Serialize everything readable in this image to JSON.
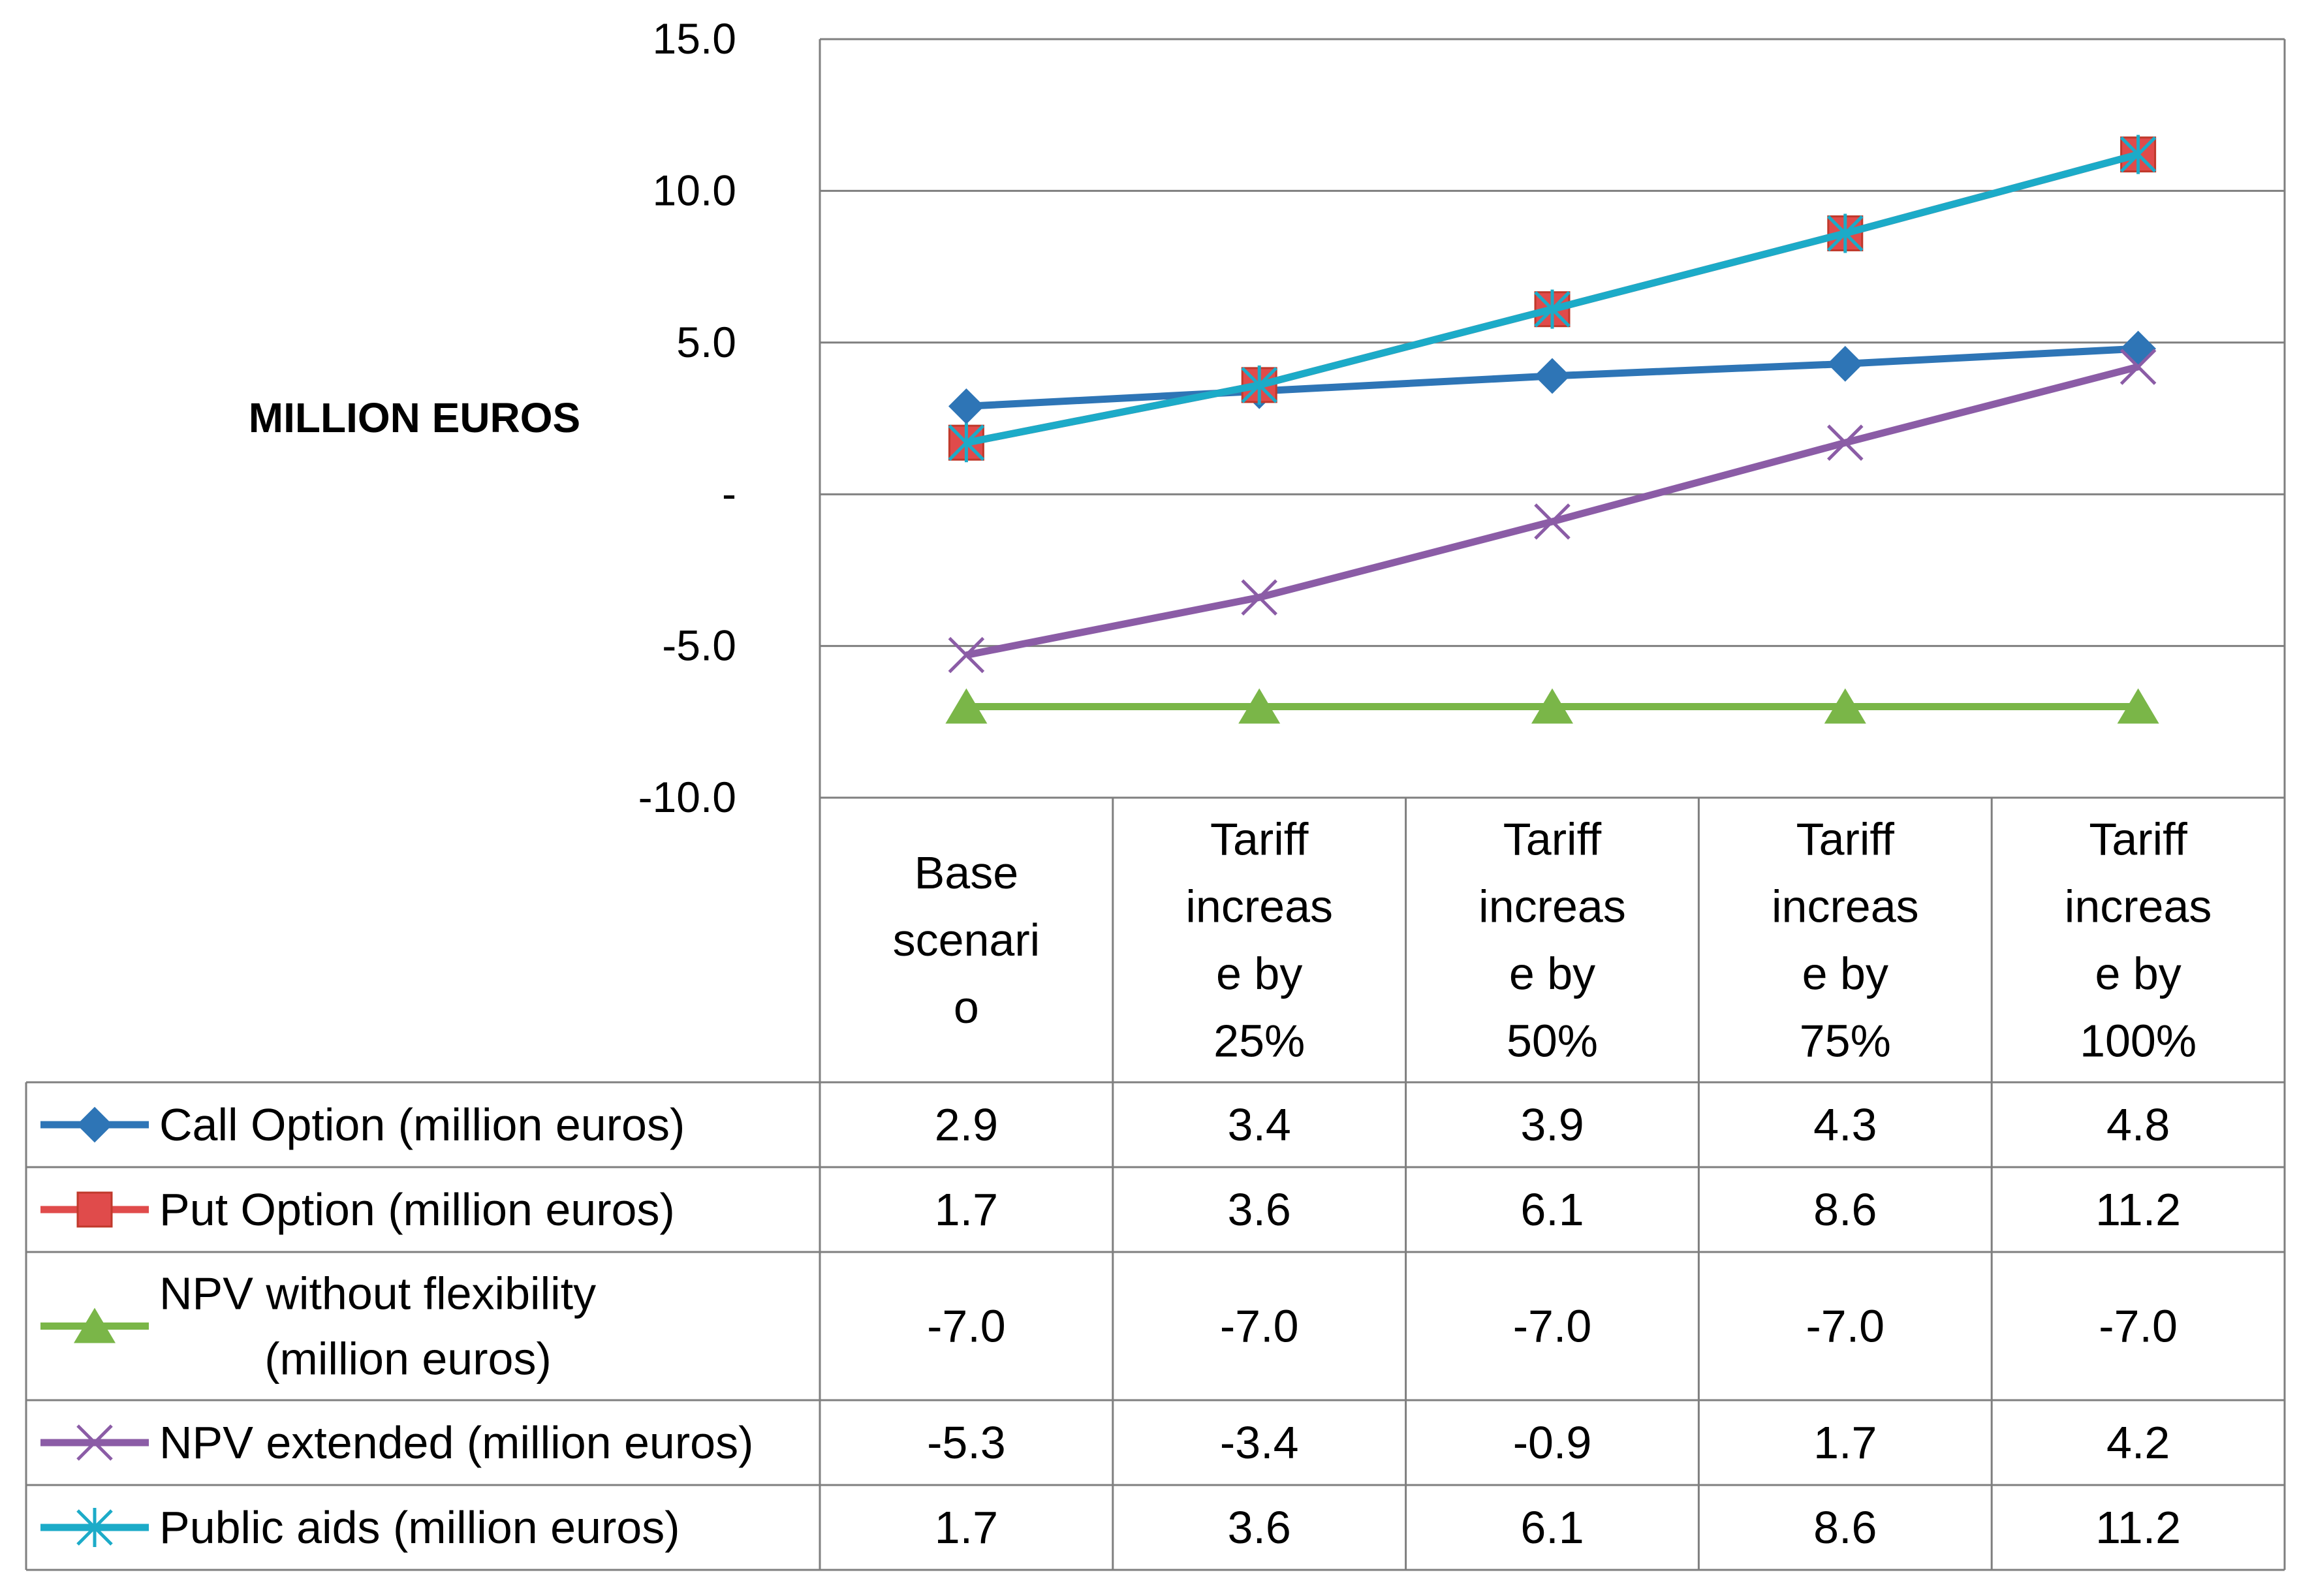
{
  "chart_data": {
    "type": "line",
    "title": "",
    "xlabel": "",
    "ylabel": "MILLION EUROS",
    "ylim": [
      -10,
      15
    ],
    "ytick_values": [
      15,
      10,
      5,
      0,
      -5,
      -10
    ],
    "ytick_labels": [
      "15.0",
      "10.0",
      "5.0",
      "-",
      "-5.0",
      "-10.0"
    ],
    "grid": true,
    "legend_position": "data table below plot",
    "categories": [
      [
        "Base",
        "scenari",
        "o"
      ],
      [
        "Tariff",
        "increas",
        "e by",
        "25%"
      ],
      [
        "Tariff",
        "increas",
        "e by",
        "50%"
      ],
      [
        "Tariff",
        "increas",
        "e by",
        "75%"
      ],
      [
        "Tariff",
        "increas",
        "e by",
        "100%"
      ]
    ],
    "series": [
      {
        "name": "Call Option (million euros)",
        "name_lines": [
          "Call Option (million euros)"
        ],
        "color": "#2E75B6",
        "marker": "diamond",
        "values": [
          2.9,
          3.4,
          3.9,
          4.3,
          4.8
        ],
        "labels": [
          "2.9",
          "3.4",
          "3.9",
          "4.3",
          "4.8"
        ]
      },
      {
        "name": "Put Option (million euros)",
        "name_lines": [
          "Put Option (million euros)"
        ],
        "color": "#E04B4B",
        "marker": "square",
        "values": [
          1.7,
          3.6,
          6.1,
          8.6,
          11.2
        ],
        "labels": [
          "1.7",
          "3.6",
          "6.1",
          "8.6",
          "11.2"
        ]
      },
      {
        "name": "NPV without flexibility (million euros)",
        "name_lines": [
          "NPV without flexibility",
          "(million euros)"
        ],
        "color": "#7AB648",
        "marker": "triangle",
        "values": [
          -7.0,
          -7.0,
          -7.0,
          -7.0,
          -7.0
        ],
        "labels": [
          "-7.0",
          "-7.0",
          "-7.0",
          "-7.0",
          "-7.0"
        ]
      },
      {
        "name": "NPV extended (million euros)",
        "name_lines": [
          "NPV extended (million euros)"
        ],
        "color": "#8B5CA6",
        "marker": "x",
        "values": [
          -5.3,
          -3.4,
          -0.9,
          1.7,
          4.2
        ],
        "labels": [
          "-5.3",
          "-3.4",
          "-0.9",
          "1.7",
          "4.2"
        ]
      },
      {
        "name": "Public aids (million euros)",
        "name_lines": [
          "Public aids (million euros)"
        ],
        "color": "#1CABC8",
        "marker": "star",
        "values": [
          1.7,
          3.6,
          6.1,
          8.6,
          11.2
        ],
        "labels": [
          "1.7",
          "3.6",
          "6.1",
          "8.6",
          "11.2"
        ]
      }
    ]
  }
}
